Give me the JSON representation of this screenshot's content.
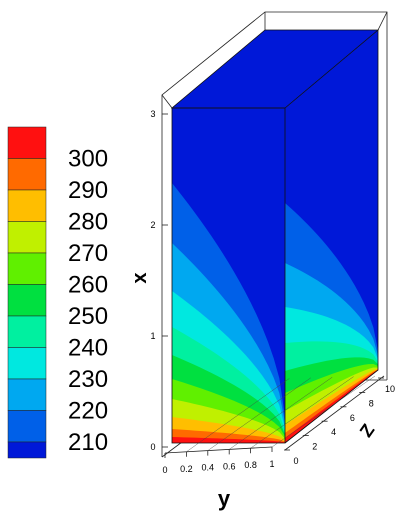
{
  "chart_data": {
    "type": "contour",
    "title": "",
    "axes": {
      "x": {
        "label": "x",
        "range": [
          0,
          3
        ],
        "ticks": [
          "0",
          "1",
          "2",
          "3"
        ]
      },
      "y": {
        "label": "y",
        "range": [
          0,
          1
        ],
        "ticks": [
          "0",
          "0.2",
          "0.4",
          "0.6",
          "0.8",
          "1"
        ]
      },
      "z": {
        "label": "Z",
        "range": [
          0,
          10
        ],
        "ticks": [
          "0",
          "2",
          "4",
          "6",
          "8",
          "10"
        ]
      }
    },
    "legend": {
      "placement": "left",
      "levels": [
        {
          "value": 300,
          "label": "300",
          "color": "#ff1010"
        },
        {
          "value": 290,
          "label": "290",
          "color": "#ff6a00"
        },
        {
          "value": 280,
          "label": "280",
          "color": "#ffbe00"
        },
        {
          "value": 270,
          "label": "270",
          "color": "#c0f000"
        },
        {
          "value": 260,
          "label": "260",
          "color": "#60f000"
        },
        {
          "value": 250,
          "label": "250",
          "color": "#00e040"
        },
        {
          "value": 240,
          "label": "240",
          "color": "#00f0a0"
        },
        {
          "value": 230,
          "label": "230",
          "color": "#00e8e0"
        },
        {
          "value": 220,
          "label": "220",
          "color": "#00a8f0"
        },
        {
          "value": 210,
          "label": "210",
          "color": "#0060e8"
        }
      ],
      "bottom_color": "#0018d8"
    },
    "box_wireframe": true
  }
}
